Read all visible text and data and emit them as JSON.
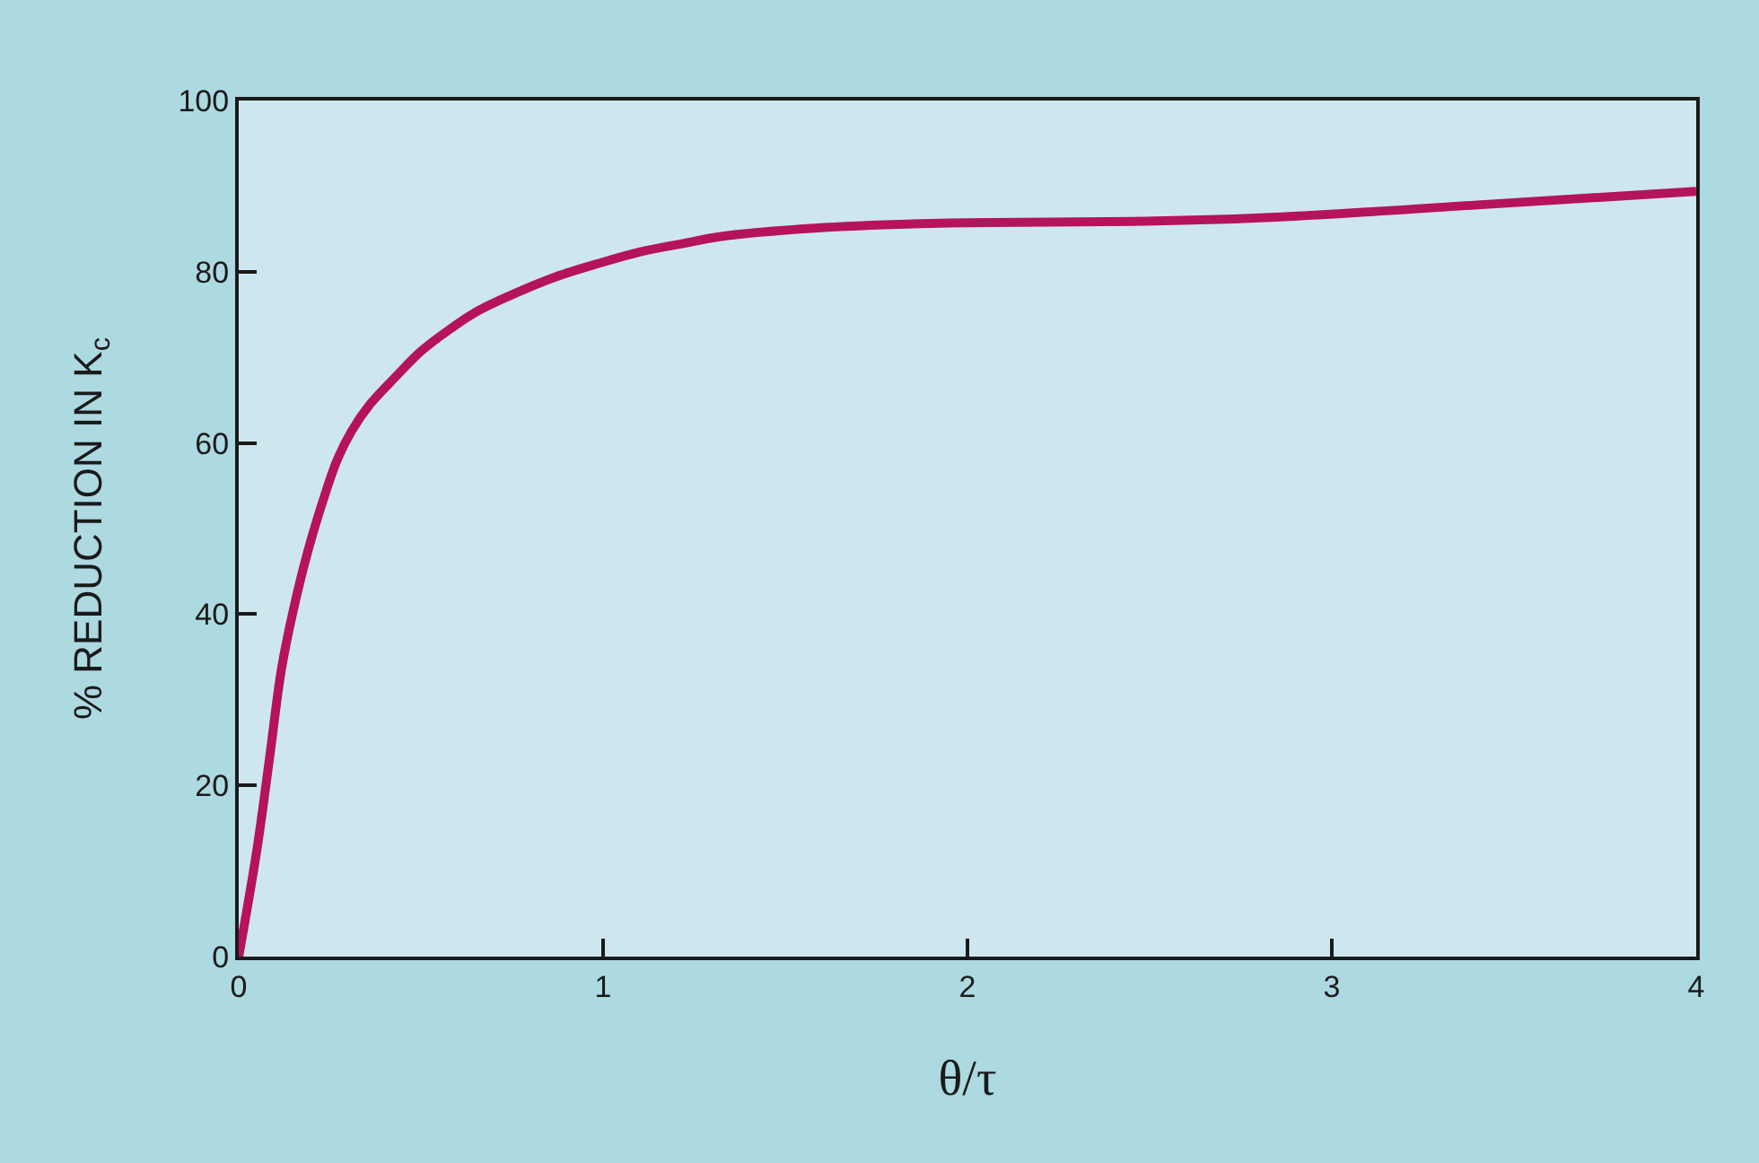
{
  "chart_data": {
    "type": "line",
    "xlabel": "θ/τ",
    "ylabel": "% REDUCTION IN K$_{c}$",
    "x": [
      0,
      0.05,
      0.084,
      0.117,
      0.15,
      0.19,
      0.24,
      0.27,
      0.31,
      0.36,
      0.43,
      0.5,
      0.58,
      0.66,
      0.76,
      0.87,
      0.99,
      1.1,
      1.22,
      1.32,
      1.58,
      1.95,
      2.49,
      2.86,
      3.4,
      4.0
    ],
    "series": [
      {
        "color": "#b5135a",
        "values": [
          0,
          12.5,
          23,
          33.5,
          40.5,
          47.4,
          54.4,
          58,
          61.4,
          64.5,
          67.7,
          70.7,
          73.3,
          75.5,
          77.5,
          79.4,
          81,
          82.3,
          83.3,
          84.1,
          85.1,
          85.7,
          85.9,
          86.4,
          87.8,
          89.4
        ]
      }
    ],
    "xlim": [
      0,
      4
    ],
    "xticks": [
      0,
      1,
      2,
      3,
      4
    ],
    "ylim": [
      0,
      100
    ],
    "yticks": [
      0,
      20,
      40,
      60,
      80,
      100
    ],
    "grid": false,
    "marker": "none",
    "line_style": "solid"
  }
}
